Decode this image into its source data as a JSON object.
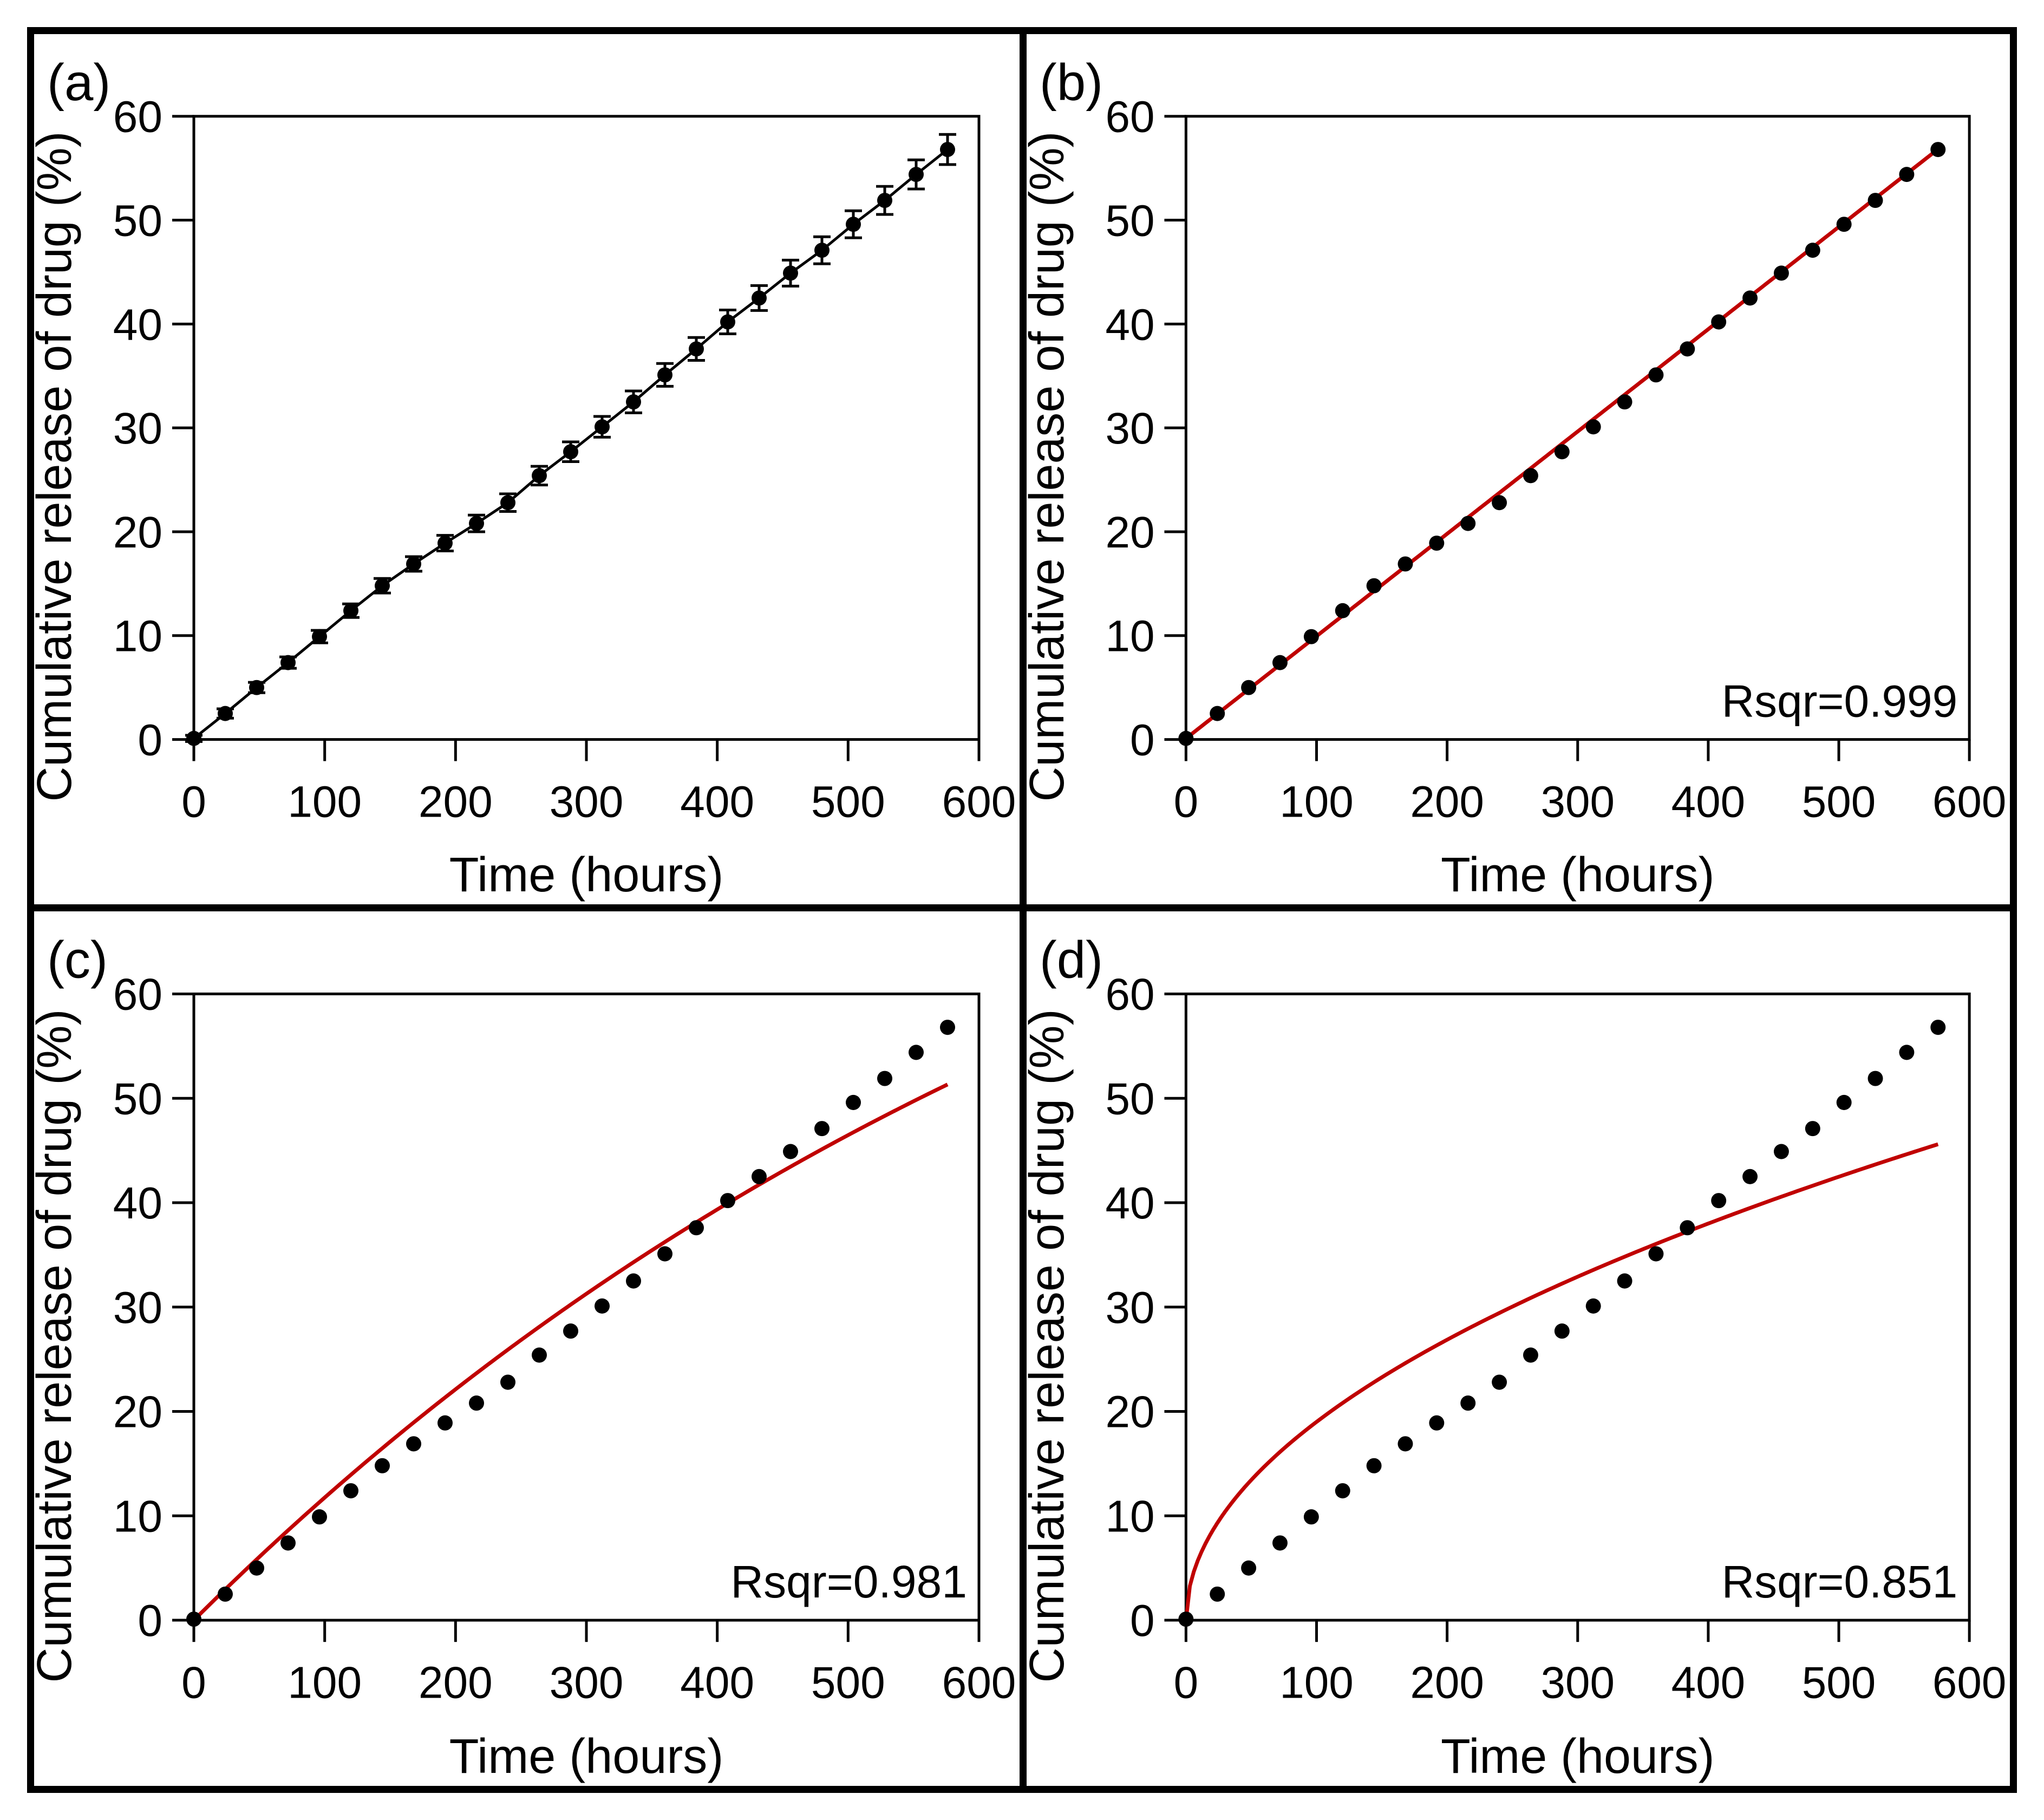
{
  "figure": {
    "background_color": "#ffffff",
    "frame_color": "#000000"
  },
  "chart_data": {
    "type": "scatter",
    "title": "",
    "xlabel": "Time (hours)",
    "ylabel": "Cumulative release of drug (%)",
    "xlim": [
      0,
      600
    ],
    "ylim": [
      0,
      60
    ],
    "xticks": [
      0,
      100,
      200,
      300,
      400,
      500,
      600
    ],
    "yticks": [
      0,
      10,
      20,
      30,
      40,
      50,
      60
    ],
    "grid": false,
    "point_color": "#000000",
    "fit_color": "#c00000",
    "x_hours": [
      0,
      24,
      48,
      72,
      96,
      120,
      144,
      168,
      192,
      216,
      240,
      264,
      288,
      312,
      336,
      360,
      384,
      408,
      432,
      456,
      480,
      504,
      528,
      552,
      576
    ],
    "release_percent": [
      0.1,
      2.5,
      5.0,
      7.4,
      9.9,
      12.4,
      14.8,
      16.9,
      18.9,
      20.8,
      22.8,
      25.4,
      27.7,
      30.1,
      32.5,
      35.1,
      37.6,
      40.2,
      42.5,
      44.9,
      47.1,
      49.6,
      51.9,
      54.4,
      56.8
    ],
    "error_bars": [
      0.3,
      0.45,
      0.5,
      0.55,
      0.6,
      0.65,
      0.7,
      0.7,
      0.75,
      0.8,
      0.85,
      0.9,
      0.95,
      1.0,
      1.05,
      1.1,
      1.1,
      1.15,
      1.2,
      1.25,
      1.3,
      1.3,
      1.35,
      1.4,
      1.45
    ],
    "panels": [
      {
        "id": "a",
        "label": "(a)",
        "rsqr_label": "",
        "show_error_bars": true,
        "show_connect_line": true,
        "fit": null
      },
      {
        "id": "b",
        "label": "(b)",
        "rsqr_label": "Rsqr=0.999",
        "show_error_bars": false,
        "show_connect_line": false,
        "fit": {
          "model": "linear",
          "slope": 0.0985,
          "intercept": 0.1
        }
      },
      {
        "id": "c",
        "label": "(c)",
        "rsqr_label": "Rsqr=0.981",
        "show_error_bars": false,
        "show_connect_line": false,
        "fit": {
          "model": "first_order",
          "fmax": 100,
          "k": 0.00125
        }
      },
      {
        "id": "d",
        "label": "(d)",
        "rsqr_label": "Rsqr=0.851",
        "show_error_bars": false,
        "show_connect_line": false,
        "fit": {
          "model": "higuchi",
          "kh": 1.9
        }
      }
    ]
  }
}
